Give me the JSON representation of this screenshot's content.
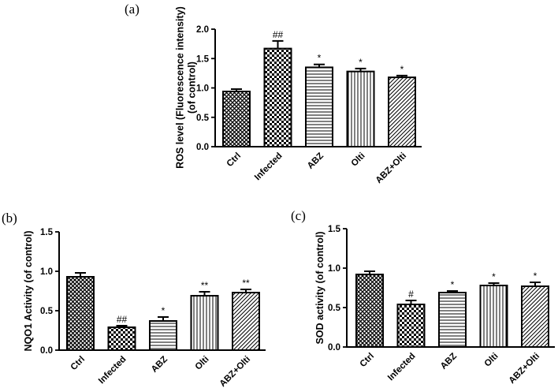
{
  "chart_data": [
    {
      "panel_label": "(a)",
      "type": "bar",
      "ylabel_lines": [
        "ROS level (Fluorescence intensity)",
        "(of control)"
      ],
      "ylim": [
        0,
        2.0
      ],
      "yticks": [
        0.0,
        0.5,
        1.0,
        1.5,
        2.0
      ],
      "ytick_labels": [
        "0.0",
        "0.5",
        "1.0",
        "1.5",
        "2.0"
      ],
      "categories": [
        "Ctrl",
        "Infected",
        "ABZ",
        "Olti",
        "ABZ+Olti"
      ],
      "values": [
        0.94,
        1.67,
        1.35,
        1.28,
        1.18
      ],
      "errors": [
        0.04,
        0.13,
        0.05,
        0.05,
        0.03
      ],
      "significance": [
        "",
        "##",
        "*",
        "*",
        "*"
      ],
      "patterns": [
        "crosshatch",
        "checker",
        "hlines",
        "vlines",
        "diag"
      ]
    },
    {
      "panel_label": "(b)",
      "type": "bar",
      "ylabel_lines": [
        "NQO1 Activity (of control)"
      ],
      "ylim": [
        0,
        1.5
      ],
      "yticks": [
        0.0,
        0.5,
        1.0,
        1.5
      ],
      "ytick_labels": [
        "0.0",
        "0.5",
        "1.0",
        "1.5"
      ],
      "categories": [
        "Ctrl",
        "Infected",
        "ABZ",
        "Olti",
        "ABZ+Olti"
      ],
      "values": [
        0.93,
        0.29,
        0.37,
        0.69,
        0.73
      ],
      "errors": [
        0.05,
        0.02,
        0.05,
        0.05,
        0.04
      ],
      "significance": [
        "",
        "##",
        "*",
        "**",
        "**"
      ],
      "patterns": [
        "crosshatch",
        "checker",
        "hlines",
        "vlines",
        "diag"
      ]
    },
    {
      "panel_label": "(c)",
      "type": "bar",
      "ylabel_lines": [
        "SOD activity (of control)"
      ],
      "ylim": [
        0,
        1.5
      ],
      "yticks": [
        0.0,
        0.5,
        1.0,
        1.5
      ],
      "ytick_labels": [
        "0.0",
        "0.5",
        "1.0",
        "1.5"
      ],
      "categories": [
        "Ctrl",
        "Infected",
        "ABZ",
        "Olti",
        "ABZ+Olti"
      ],
      "values": [
        0.92,
        0.54,
        0.69,
        0.78,
        0.77
      ],
      "errors": [
        0.04,
        0.05,
        0.02,
        0.03,
        0.05
      ],
      "significance": [
        "",
        "#",
        "*",
        "*",
        "*"
      ],
      "patterns": [
        "crosshatch",
        "checker",
        "hlines",
        "vlines",
        "diag"
      ]
    }
  ]
}
